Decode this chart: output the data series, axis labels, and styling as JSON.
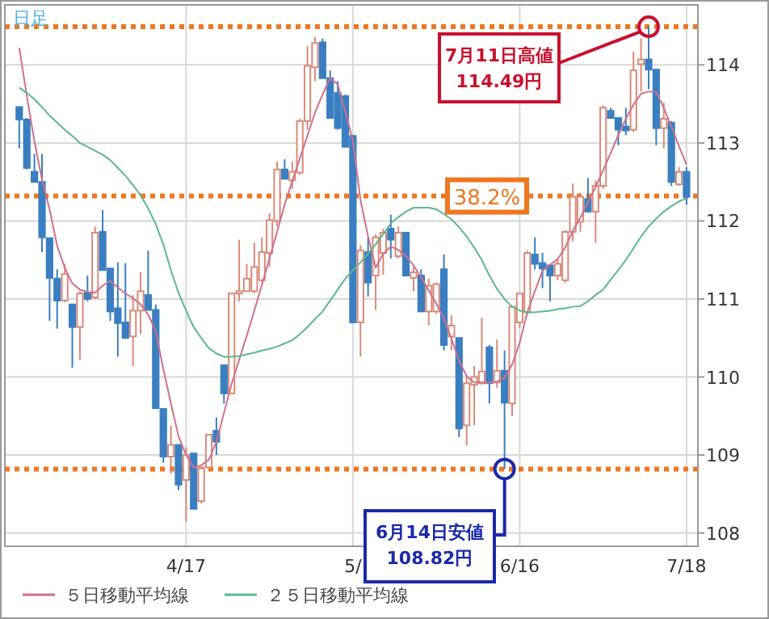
{
  "chart_data": {
    "type": "candlestick",
    "title": "日足",
    "categories": [
      null,
      null,
      null,
      null,
      null,
      null,
      null,
      null,
      null,
      null,
      null,
      null,
      null,
      null,
      null,
      null,
      null,
      null,
      null,
      null,
      null,
      null,
      "4/17",
      null,
      null,
      null,
      null,
      null,
      null,
      null,
      null,
      null,
      null,
      null,
      null,
      null,
      null,
      null,
      null,
      null,
      null,
      null,
      null,
      null,
      "5/",
      null,
      null,
      null,
      null,
      null,
      null,
      null,
      null,
      null,
      null,
      null,
      null,
      null,
      null,
      null,
      null,
      null,
      null,
      null,
      null,
      null,
      "6/16",
      null,
      null,
      null,
      null,
      null,
      null,
      null,
      null,
      null,
      null,
      null,
      null,
      null,
      null,
      null,
      null,
      null,
      null,
      null,
      null,
      null,
      "7/18"
    ],
    "ylim": [
      107.83,
      114.77
    ],
    "yticks": [
      108,
      109,
      110,
      111,
      112,
      113,
      114
    ],
    "grid": true,
    "legend": "bottom",
    "marker": "none",
    "series": [
      {
        "ohlc": [
          [
            113.46,
            113.47,
            112.93,
            113.3
          ],
          [
            113.3,
            113.32,
            112.66,
            112.68
          ],
          [
            112.63,
            112.86,
            112.5,
            112.5
          ],
          [
            112.5,
            112.86,
            111.6,
            111.79
          ],
          [
            111.78,
            111.78,
            110.72,
            111.27
          ],
          [
            111.26,
            111.38,
            110.62,
            110.98
          ],
          [
            110.98,
            111.45,
            110.96,
            111.32
          ],
          [
            110.93,
            110.93,
            110.12,
            110.64
          ],
          [
            110.64,
            111.1,
            110.22,
            111.07
          ],
          [
            111.08,
            111.3,
            110.97,
            111.0
          ],
          [
            111.02,
            111.93,
            111.0,
            111.85
          ],
          [
            111.86,
            112.14,
            111.37,
            111.37
          ],
          [
            111.39,
            111.39,
            110.72,
            110.84
          ],
          [
            110.88,
            111.47,
            110.26,
            110.69
          ],
          [
            110.7,
            111.46,
            110.5,
            110.5
          ],
          [
            110.52,
            111.05,
            110.14,
            110.85
          ],
          [
            110.85,
            111.34,
            110.55,
            111.1
          ],
          [
            111.05,
            111.62,
            110.86,
            110.86
          ],
          [
            110.86,
            110.93,
            109.6,
            109.6
          ],
          [
            109.59,
            109.59,
            108.9,
            108.98
          ],
          [
            108.98,
            109.38,
            108.76,
            109.13
          ],
          [
            109.13,
            109.13,
            108.55,
            108.62
          ],
          [
            108.68,
            109.1,
            108.14,
            109.0
          ],
          [
            109.02,
            109.02,
            108.31,
            108.31
          ],
          [
            108.41,
            108.83,
            108.38,
            108.83
          ],
          [
            108.84,
            109.26,
            108.84,
            109.26
          ],
          [
            109.31,
            109.48,
            109.0,
            109.17
          ],
          [
            110.15,
            110.15,
            109.66,
            109.79
          ],
          [
            109.79,
            111.07,
            109.79,
            111.07
          ],
          [
            111.07,
            111.76,
            110.97,
            111.1
          ],
          [
            111.1,
            111.45,
            111.1,
            111.26
          ],
          [
            111.1,
            111.72,
            111.07,
            111.41
          ],
          [
            111.24,
            111.79,
            111.21,
            111.6
          ],
          [
            111.59,
            112.1,
            111.41,
            112.01
          ],
          [
            112.0,
            112.76,
            111.93,
            112.66
          ],
          [
            112.66,
            112.79,
            112.54,
            112.54
          ],
          [
            112.52,
            112.76,
            112.41,
            112.63
          ],
          [
            112.62,
            113.31,
            112.59,
            113.28
          ],
          [
            113.28,
            114.24,
            113.17,
            113.99
          ],
          [
            113.97,
            114.36,
            113.79,
            114.28
          ],
          [
            114.29,
            114.34,
            113.83,
            113.83
          ],
          [
            113.83,
            113.93,
            113.31,
            113.32
          ],
          [
            113.64,
            113.79,
            113.17,
            113.19
          ],
          [
            113.6,
            113.62,
            112.95,
            112.95
          ],
          [
            113.09,
            113.1,
            110.7,
            110.7
          ],
          [
            110.7,
            111.69,
            110.26,
            111.62
          ],
          [
            111.6,
            111.79,
            111.03,
            111.21
          ],
          [
            111.3,
            111.83,
            110.86,
            111.79
          ],
          [
            111.59,
            111.9,
            111.31,
            111.85
          ],
          [
            111.9,
            112.08,
            111.52,
            111.76
          ],
          [
            111.55,
            111.93,
            111.52,
            111.85
          ],
          [
            111.85,
            111.85,
            111.3,
            111.3
          ],
          [
            111.27,
            111.41,
            111.1,
            111.34
          ],
          [
            111.3,
            111.38,
            110.84,
            110.84
          ],
          [
            110.84,
            111.26,
            110.66,
            111.17
          ],
          [
            110.84,
            111.21,
            110.81,
            111.19
          ],
          [
            111.38,
            111.57,
            110.34,
            110.41
          ],
          [
            110.52,
            110.79,
            110.34,
            110.66
          ],
          [
            110.5,
            110.5,
            109.23,
            109.34
          ],
          [
            109.38,
            110.0,
            109.12,
            109.92
          ],
          [
            109.9,
            110.14,
            109.38,
            110.0
          ],
          [
            109.92,
            110.76,
            109.9,
            110.07
          ],
          [
            110.38,
            110.41,
            109.66,
            109.92
          ],
          [
            109.93,
            110.48,
            109.86,
            110.08
          ],
          [
            110.08,
            110.34,
            108.82,
            109.67
          ],
          [
            109.66,
            110.9,
            109.5,
            110.9
          ],
          [
            110.7,
            111.07,
            110.63,
            111.07
          ],
          [
            110.83,
            111.62,
            110.79,
            111.59
          ],
          [
            111.57,
            111.79,
            111.38,
            111.45
          ],
          [
            111.46,
            111.59,
            111.14,
            111.39
          ],
          [
            111.43,
            111.43,
            110.97,
            111.3
          ],
          [
            111.3,
            111.52,
            111.24,
            111.45
          ],
          [
            111.24,
            111.88,
            111.21,
            111.86
          ],
          [
            111.86,
            112.48,
            111.74,
            112.31
          ],
          [
            111.99,
            112.36,
            111.86,
            112.31
          ],
          [
            112.28,
            112.55,
            112.12,
            112.12
          ],
          [
            112.12,
            112.52,
            111.72,
            112.45
          ],
          [
            112.45,
            113.48,
            112.41,
            113.45
          ],
          [
            113.41,
            113.45,
            113.31,
            113.32
          ],
          [
            113.32,
            113.32,
            112.97,
            113.17
          ],
          [
            113.21,
            113.45,
            113.1,
            113.16
          ],
          [
            113.17,
            114.17,
            113.14,
            113.93
          ],
          [
            114.01,
            114.34,
            113.66,
            114.07
          ],
          [
            114.07,
            114.49,
            113.69,
            113.94
          ],
          [
            113.94,
            113.94,
            112.97,
            113.19
          ],
          [
            113.19,
            113.52,
            112.93,
            113.31
          ],
          [
            113.26,
            113.28,
            112.45,
            112.5
          ],
          [
            112.47,
            112.69,
            112.45,
            112.63
          ],
          [
            112.63,
            112.69,
            112.21,
            112.31
          ]
        ]
      },
      {
        "type": "line",
        "name": "５日移動平均線",
        "color": "#d0708a",
        "values": [
          114.22,
          113.6,
          113.02,
          112.53,
          112.15,
          111.68,
          111.4,
          111.2,
          111.12,
          111.09,
          111.08,
          111.17,
          111.23,
          111.15,
          111.07,
          111.01,
          110.93,
          110.8,
          110.59,
          110.1,
          109.66,
          109.24,
          109.0,
          108.84,
          108.87,
          108.94,
          109.17,
          109.54,
          109.91,
          110.22,
          110.53,
          110.85,
          111.18,
          111.52,
          111.86,
          112.21,
          112.51,
          112.8,
          113.09,
          113.39,
          113.62,
          113.83,
          113.75,
          113.4,
          113.03,
          112.27,
          111.8,
          111.4,
          111.58,
          111.67,
          111.63,
          111.55,
          111.43,
          111.28,
          111.11,
          110.94,
          110.75,
          110.49,
          110.21,
          110.01,
          109.93,
          109.93,
          109.93,
          109.94,
          109.99,
          110.16,
          110.44,
          110.83,
          111.1,
          111.36,
          111.44,
          111.51,
          111.66,
          111.87,
          112.04,
          112.24,
          112.43,
          112.65,
          112.87,
          113.1,
          113.31,
          113.49,
          113.63,
          113.66,
          113.65,
          113.45,
          113.21,
          112.96,
          112.72
        ]
      },
      {
        "type": "line",
        "name": "２５日移動平均線",
        "color": "#5cb88a",
        "values": [
          113.71,
          113.64,
          113.56,
          113.46,
          113.35,
          113.26,
          113.17,
          113.09,
          113.0,
          112.95,
          112.9,
          112.85,
          112.78,
          112.68,
          112.58,
          112.46,
          112.33,
          112.16,
          111.96,
          111.7,
          111.37,
          111.08,
          110.85,
          110.64,
          110.5,
          110.37,
          110.3,
          110.26,
          110.26,
          110.27,
          110.29,
          110.31,
          110.34,
          110.36,
          110.39,
          110.43,
          110.47,
          110.55,
          110.64,
          110.74,
          110.84,
          110.98,
          111.12,
          111.26,
          111.37,
          111.47,
          111.58,
          111.7,
          111.83,
          111.97,
          112.05,
          112.12,
          112.17,
          112.17,
          112.17,
          112.15,
          112.09,
          112.02,
          111.92,
          111.8,
          111.66,
          111.5,
          111.3,
          111.13,
          111.0,
          110.9,
          110.85,
          110.83,
          110.83,
          110.84,
          110.85,
          110.87,
          110.88,
          110.9,
          110.91,
          110.97,
          111.05,
          111.12,
          111.25,
          111.37,
          111.5,
          111.65,
          111.8,
          111.93,
          112.03,
          112.12,
          112.19,
          112.25,
          112.29
        ]
      }
    ],
    "ref_lines": [
      {
        "axis": "y",
        "value": 114.49,
        "color": "#ee7722",
        "line_style": "dotted"
      },
      {
        "axis": "y",
        "value": 112.32,
        "color": "#ee7722",
        "line_style": "dotted"
      },
      {
        "axis": "y",
        "value": 108.82,
        "color": "#ee7722",
        "line_style": "dotted"
      }
    ],
    "annotations": [
      {
        "text": "7月11日高値\n114.49円",
        "y": 114.49
      },
      {
        "text": "38.2%",
        "y": 112.32
      },
      {
        "text": "6月14日安値\n108.82円",
        "y": 108.82
      }
    ]
  }
}
